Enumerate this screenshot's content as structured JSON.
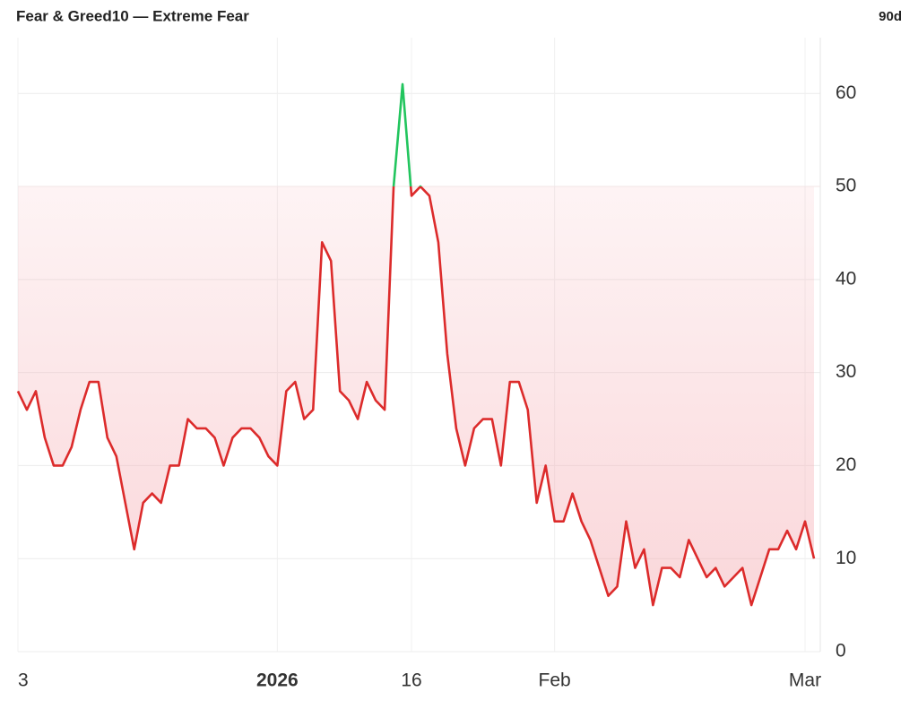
{
  "chart_data": {
    "type": "line",
    "title": "Fear & Greed10 — Extreme Fear",
    "range_label": "90d",
    "categories": [
      "3",
      null,
      null,
      null,
      null,
      null,
      null,
      null,
      null,
      null,
      null,
      null,
      null,
      null,
      null,
      null,
      null,
      null,
      null,
      null,
      null,
      null,
      null,
      null,
      null,
      null,
      null,
      null,
      null,
      "2026",
      null,
      null,
      null,
      null,
      null,
      null,
      null,
      null,
      null,
      null,
      null,
      null,
      null,
      null,
      "16",
      null,
      null,
      null,
      null,
      null,
      null,
      null,
      null,
      null,
      null,
      null,
      null,
      null,
      null,
      null,
      "Feb",
      null,
      null,
      null,
      null,
      null,
      null,
      null,
      null,
      null,
      null,
      null,
      null,
      null,
      null,
      null,
      null,
      null,
      null,
      null,
      null,
      null,
      null,
      null,
      null,
      null,
      null,
      null,
      "Mar",
      null
    ],
    "values": [
      28,
      26,
      28,
      23,
      20,
      20,
      22,
      26,
      29,
      29,
      23,
      21,
      16,
      11,
      16,
      17,
      16,
      20,
      20,
      25,
      24,
      24,
      23,
      20,
      23,
      24,
      24,
      23,
      21,
      20,
      28,
      29,
      25,
      26,
      44,
      42,
      28,
      27,
      25,
      29,
      27,
      26,
      50,
      61,
      49,
      50,
      49,
      44,
      32,
      24,
      20,
      24,
      25,
      25,
      20,
      29,
      29,
      26,
      16,
      20,
      14,
      14,
      17,
      14,
      12,
      9,
      6,
      7,
      14,
      9,
      11,
      5,
      9,
      9,
      8,
      12,
      10,
      8,
      9,
      7,
      8,
      9,
      5,
      8,
      11,
      11,
      13,
      11,
      14,
      10
    ],
    "color": "#dc2b2b",
    "threshold": 50,
    "above_color": "#22c55e",
    "fill_color": "#f4a6ad",
    "ylim": [
      0,
      66
    ],
    "yticks": [
      0,
      10,
      20,
      30,
      40,
      50,
      60
    ],
    "grid": true
  }
}
